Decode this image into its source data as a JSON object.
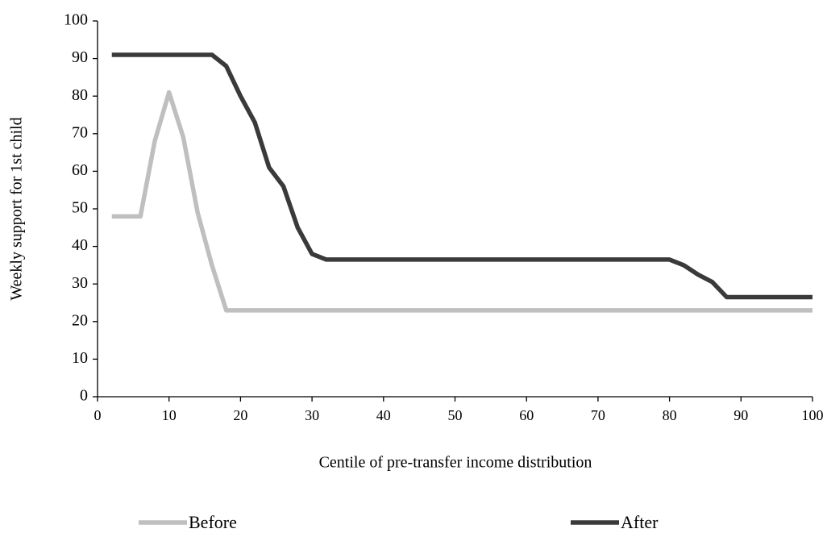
{
  "chart_data": {
    "type": "line",
    "x_label": "Centile of pre-transfer income distribution",
    "y_label": "Weekly support for 1st child",
    "x": [
      2,
      4,
      6,
      8,
      10,
      12,
      14,
      16,
      18,
      20,
      22,
      24,
      26,
      28,
      30,
      32,
      34,
      36,
      38,
      40,
      42,
      44,
      46,
      48,
      50,
      52,
      54,
      56,
      58,
      60,
      62,
      64,
      66,
      68,
      70,
      72,
      74,
      76,
      78,
      80,
      82,
      84,
      86,
      88,
      90,
      92,
      94,
      96,
      98,
      100
    ],
    "series": [
      {
        "name": "Before",
        "color": "#bfbfbf",
        "values": [
          48,
          48,
          48,
          68,
          81,
          69,
          49,
          35,
          23,
          23,
          23,
          23,
          23,
          23,
          23,
          23,
          23,
          23,
          23,
          23,
          23,
          23,
          23,
          23,
          23,
          23,
          23,
          23,
          23,
          23,
          23,
          23,
          23,
          23,
          23,
          23,
          23,
          23,
          23,
          23,
          23,
          23,
          23,
          23,
          23,
          23,
          23,
          23,
          23,
          23
        ]
      },
      {
        "name": "After",
        "color": "#3a3a3a",
        "values": [
          91,
          91,
          91,
          91,
          91,
          91,
          91,
          91,
          88,
          80,
          73,
          61,
          56,
          45,
          38,
          36.5,
          36.5,
          36.5,
          36.5,
          36.5,
          36.5,
          36.5,
          36.5,
          36.5,
          36.5,
          36.5,
          36.5,
          36.5,
          36.5,
          36.5,
          36.5,
          36.5,
          36.5,
          36.5,
          36.5,
          36.5,
          36.5,
          36.5,
          36.5,
          36.5,
          35,
          32.5,
          30.5,
          26.5,
          26.5,
          26.5,
          26.5,
          26.5,
          26.5,
          26.5
        ]
      }
    ],
    "xlim": [
      0,
      100
    ],
    "xticks": [
      0,
      10,
      20,
      30,
      40,
      50,
      60,
      70,
      80,
      90,
      100
    ],
    "ylim": [
      0,
      100
    ],
    "yticks": [
      0,
      10,
      20,
      30,
      40,
      50,
      60,
      70,
      80,
      90,
      100
    ],
    "grid": false
  }
}
